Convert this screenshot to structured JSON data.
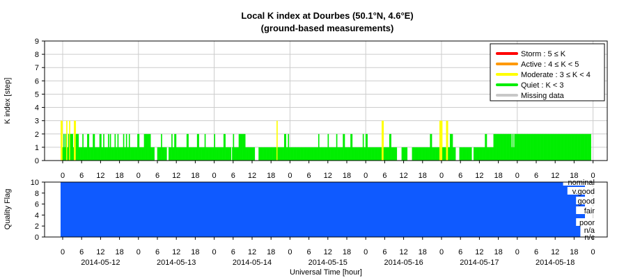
{
  "chart_data": [
    {
      "type": "bar",
      "title": "Local K index at Dourbes (50.1°N, 4.6°E)",
      "subtitle": "(ground-based measurements)",
      "ylabel": "K index [step]",
      "ylim": [
        0,
        9
      ],
      "yticks": [
        "0",
        "1",
        "2",
        "3",
        "4",
        "5",
        "6",
        "7",
        "8",
        "9"
      ],
      "grid": true,
      "legend_position": "top-right",
      "legend": [
        {
          "label": "Storm : 5 ≤ K",
          "color": "#ff0000"
        },
        {
          "label": "Active : 4 ≤ K < 5",
          "color": "#ff9900"
        },
        {
          "label": "Moderate : 3 ≤ K < 4",
          "color": "#ffff00"
        },
        {
          "label": "Quiet : K < 3",
          "color": "#00ee00"
        },
        {
          "label": "Missing data",
          "color": "#c8c8c8"
        }
      ],
      "interval_hours": 1.5,
      "values_12": [
        3,
        3,
        1,
        2,
        1,
        2,
        3,
        1,
        2,
        3,
        2,
        2,
        2,
        1,
        3,
        3,
        2,
        2,
        2,
        1,
        1,
        1,
        1,
        2,
        1,
        1,
        1,
        1,
        2,
        2,
        1,
        1,
        1,
        1,
        2,
        2,
        1,
        1,
        1,
        1,
        1,
        2,
        2,
        1,
        1,
        2,
        1,
        1,
        1,
        1,
        2,
        1,
        2,
        1,
        1,
        1,
        1,
        2,
        1,
        1,
        2,
        1,
        1,
        1,
        1,
        1,
        2,
        1,
        1,
        2,
        1,
        1,
        2,
        1,
        1,
        1,
        1,
        1,
        1,
        1
      ],
      "values_13": [
        1,
        2,
        2,
        1,
        1,
        1,
        1,
        1,
        2,
        2,
        2,
        2,
        2,
        2,
        2,
        1,
        1,
        1,
        1,
        0,
        0,
        0,
        1,
        1,
        1,
        1,
        2,
        1,
        1,
        1,
        1,
        1,
        0,
        0,
        1,
        1,
        1,
        2,
        1,
        1,
        2,
        2,
        1,
        1,
        1,
        1,
        1,
        1,
        1,
        1,
        1,
        1,
        1,
        2,
        2,
        1,
        1,
        1,
        1,
        1,
        1,
        1,
        1,
        1,
        2,
        2,
        1,
        1,
        1,
        1,
        1,
        1,
        2,
        1,
        1,
        1,
        1,
        1,
        1,
        1
      ],
      "values_14": [
        1,
        1,
        2,
        1,
        1,
        1,
        1,
        1,
        1,
        1,
        1,
        1,
        2,
        2,
        1,
        1,
        1,
        1,
        1,
        1,
        0,
        1,
        2,
        1,
        1,
        1,
        1,
        1,
        2,
        2,
        2,
        2,
        2,
        2,
        2,
        1,
        1,
        1,
        1,
        1,
        1,
        1,
        1,
        1,
        1,
        0,
        0,
        0,
        0,
        1,
        1,
        1,
        1,
        1,
        1,
        1,
        1,
        1,
        1,
        1,
        1,
        1,
        1,
        1,
        1,
        1,
        1,
        1,
        3,
        1,
        1,
        1,
        1,
        1,
        1,
        1,
        2,
        2,
        1,
        1
      ],
      "values_15": [
        2,
        1,
        1,
        1,
        1,
        1,
        1,
        1,
        1,
        1,
        1,
        1,
        1,
        1,
        1,
        1,
        1,
        1,
        1,
        1,
        1,
        1,
        1,
        1,
        1,
        1,
        1,
        1,
        1,
        1,
        1,
        1,
        2,
        1,
        1,
        1,
        1,
        1,
        1,
        1,
        1,
        1,
        2,
        1,
        1,
        1,
        1,
        1,
        1,
        1,
        1,
        2,
        1,
        1,
        1,
        1,
        1,
        1,
        2,
        2,
        1,
        1,
        1,
        1,
        1,
        1,
        2,
        2,
        1,
        1,
        1,
        1,
        1,
        1,
        1,
        1,
        1,
        1,
        1,
        2
      ],
      "values_16": [
        1,
        1,
        2,
        2,
        1,
        1,
        1,
        1,
        1,
        1,
        1,
        1,
        1,
        1,
        1,
        1,
        1,
        1,
        1,
        3,
        3,
        1,
        1,
        1,
        1,
        1,
        1,
        2,
        2,
        1,
        1,
        1,
        1,
        1,
        1,
        0,
        0,
        0,
        0,
        0,
        1,
        1,
        1,
        1,
        1,
        1,
        0,
        0,
        0,
        0,
        0,
        1,
        1,
        1,
        1,
        1,
        1,
        1,
        1,
        1,
        1,
        1,
        1,
        1,
        1,
        1,
        1,
        1,
        1,
        1,
        2,
        2,
        1,
        1,
        1,
        1,
        1,
        1,
        1,
        1
      ],
      "values_17": [
        3,
        3,
        3,
        1,
        1,
        1,
        1,
        3,
        3,
        1,
        1,
        2,
        2,
        2,
        1,
        1,
        1,
        0,
        0,
        0,
        0,
        1,
        1,
        1,
        1,
        1,
        1,
        1,
        1,
        1,
        1,
        1,
        1,
        1,
        0,
        0,
        1,
        1,
        1,
        1,
        1,
        1,
        1,
        1,
        1,
        1,
        1,
        1,
        2,
        2,
        1,
        1,
        1,
        1,
        1,
        1,
        1,
        2,
        2,
        2,
        2,
        2,
        2,
        2,
        2,
        2,
        2,
        2,
        2,
        2,
        2,
        2,
        2,
        2,
        2,
        2,
        1,
        2,
        1,
        2
      ],
      "values_18": [
        2,
        2,
        2,
        2,
        2,
        2,
        2,
        2,
        2,
        2,
        2,
        2,
        2,
        2,
        2,
        2,
        2,
        2,
        2,
        2,
        2,
        2,
        2,
        2,
        2,
        2,
        2,
        2,
        2,
        2,
        2,
        2,
        2,
        2,
        2,
        2,
        2,
        2,
        2,
        2,
        2,
        2,
        2,
        2,
        2,
        2,
        2,
        2,
        2,
        2,
        2,
        2,
        2,
        2,
        2,
        2,
        2,
        2,
        2,
        2,
        2,
        2,
        2,
        2,
        2,
        2,
        2,
        2,
        2,
        2,
        2,
        2,
        2,
        2,
        2,
        2,
        2,
        2,
        2,
        2
      ]
    },
    {
      "type": "bar",
      "ylabel": "Quality Flag",
      "ylim": [
        0,
        10
      ],
      "yticks": [
        "0",
        "2",
        "4",
        "6",
        "8",
        "10"
      ],
      "flag_labels": [
        "nominal",
        "v.good",
        "good",
        "fair",
        "poor",
        "n/a",
        "n/c"
      ],
      "fill_color": "#0f5aff",
      "xlabel": "Universal Time [hour]",
      "xtick_hours": [
        "0",
        "6",
        "12",
        "18"
      ],
      "dates": [
        "2014-05-12",
        "2014-05-13",
        "2014-05-14",
        "2014-05-15",
        "2014-05-16",
        "2014-05-17",
        "2014-05-18"
      ]
    }
  ]
}
